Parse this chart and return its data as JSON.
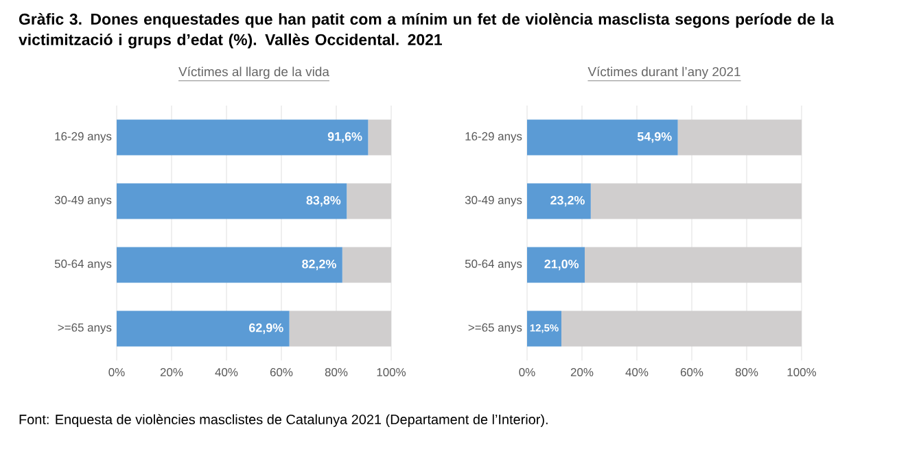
{
  "chart_data": [
    {
      "type": "other",
      "title": "Gràfic 3. Dones enquestades que han patit com a mínim un fet de violència masclista segons període de la victimització i grups d’edat (%). Vallès Occidental. 2021",
      "annotations": [
        "Font: Enquesta de violències masclistes de Catalunya 2021 (Departament de l’Interior)."
      ]
    },
    {
      "type": "bar",
      "orientation": "horizontal",
      "stacked": true,
      "title": "Víctimes al llarg de la vida",
      "categories": [
        "16-29 anys",
        "30-49 anys",
        "50-64 anys",
        ">=65 anys"
      ],
      "series": [
        {
          "color": "#5b9bd5",
          "values": [
            91.6,
            83.8,
            82.2,
            62.9
          ],
          "value_labels": [
            "91,6%",
            "83,8%",
            "82,2%",
            "62,9%"
          ]
        },
        {
          "color": "#d0cece",
          "values": [
            8.4,
            16.2,
            17.8,
            37.1
          ]
        }
      ],
      "xlim": [
        0,
        100
      ],
      "xticks": [
        {
          "value": 0,
          "label": "0%"
        },
        {
          "value": 20,
          "label": "20%"
        },
        {
          "value": 40,
          "label": "40%"
        },
        {
          "value": 60,
          "label": "60%"
        },
        {
          "value": 80,
          "label": "80%"
        },
        {
          "value": 100,
          "label": "100%"
        }
      ],
      "grid": "x"
    },
    {
      "type": "bar",
      "orientation": "horizontal",
      "stacked": true,
      "title": "Víctimes durant l’any 2021",
      "categories": [
        "16-29 anys",
        "30-49 anys",
        "50-64 anys",
        ">=65 anys"
      ],
      "series": [
        {
          "color": "#5b9bd5",
          "values": [
            54.9,
            23.2,
            21.0,
            12.5
          ],
          "value_labels": [
            "54,9%",
            "23,2%",
            "21,0%",
            "12,5%"
          ]
        },
        {
          "color": "#d0cece",
          "values": [
            45.1,
            76.8,
            79.0,
            87.5
          ]
        }
      ],
      "xlim": [
        0,
        100
      ],
      "xticks": [
        {
          "value": 0,
          "label": "0%"
        },
        {
          "value": 20,
          "label": "20%"
        },
        {
          "value": 40,
          "label": "40%"
        },
        {
          "value": 60,
          "label": "60%"
        },
        {
          "value": 80,
          "label": "80%"
        },
        {
          "value": 100,
          "label": "100%"
        }
      ],
      "grid": "x"
    }
  ]
}
